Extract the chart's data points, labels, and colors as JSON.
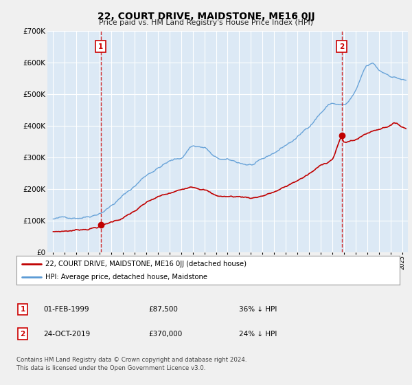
{
  "title": "22, COURT DRIVE, MAIDSTONE, ME16 0JJ",
  "subtitle": "Price paid vs. HM Land Registry's House Price Index (HPI)",
  "legend_line1": "22, COURT DRIVE, MAIDSTONE, ME16 0JJ (detached house)",
  "legend_line2": "HPI: Average price, detached house, Maidstone",
  "annotation1_label": "1",
  "annotation1_date": "01-FEB-1999",
  "annotation1_price": "£87,500",
  "annotation1_hpi": "36% ↓ HPI",
  "annotation2_label": "2",
  "annotation2_date": "24-OCT-2019",
  "annotation2_price": "£370,000",
  "annotation2_hpi": "24% ↓ HPI",
  "footer": "Contains HM Land Registry data © Crown copyright and database right 2024.\nThis data is licensed under the Open Government Licence v3.0.",
  "hpi_color": "#5b9bd5",
  "price_color": "#c00000",
  "marker1_x": 1999.08,
  "marker1_y": 87500,
  "marker2_x": 2019.81,
  "marker2_y": 370000,
  "vline1_x": 1999.08,
  "vline2_x": 2019.81,
  "ylim": [
    0,
    700000
  ],
  "xlim_start": 1994.5,
  "xlim_end": 2025.5,
  "plot_bg_color": "#dce9f5",
  "fig_bg_color": "#f0f0f0"
}
